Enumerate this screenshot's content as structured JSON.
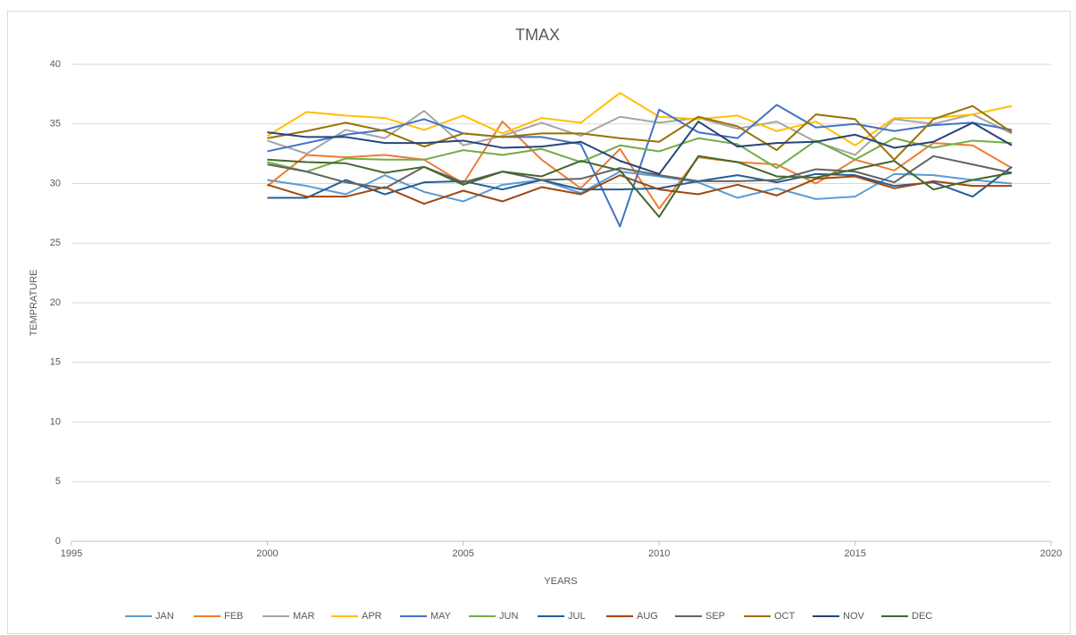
{
  "chart_data": {
    "type": "line",
    "title": "TMAX",
    "xlabel": "YEARS",
    "ylabel": "TEMPRATURE",
    "x": [
      2000,
      2001,
      2002,
      2003,
      2004,
      2005,
      2006,
      2007,
      2008,
      2009,
      2010,
      2011,
      2012,
      2013,
      2014,
      2015,
      2016,
      2017,
      2018,
      2019
    ],
    "xlim": [
      1995,
      2020
    ],
    "xticks": [
      1995,
      2000,
      2005,
      2010,
      2015,
      2020
    ],
    "ylim": [
      0,
      40
    ],
    "yticks": [
      0,
      5,
      10,
      15,
      20,
      25,
      30,
      35,
      40
    ],
    "grid": true,
    "legend": "bottom",
    "series": [
      {
        "name": "JAN",
        "color": "#5b9bd5",
        "values": [
          30.3,
          29.8,
          29.1,
          30.7,
          29.3,
          28.5,
          29.9,
          30.3,
          29.2,
          31.0,
          30.6,
          30.1,
          28.8,
          29.6,
          28.7,
          28.9,
          30.8,
          30.7,
          30.3,
          30.0
        ]
      },
      {
        "name": "FEB",
        "color": "#ed7d31",
        "values": [
          29.8,
          32.4,
          32.2,
          32.4,
          32.0,
          30.0,
          35.2,
          32.0,
          29.6,
          32.9,
          27.9,
          32.2,
          31.8,
          31.6,
          30.0,
          32.0,
          31.1,
          33.4,
          33.2,
          31.3
        ]
      },
      {
        "name": "MAR",
        "color": "#a5a5a5",
        "values": [
          33.6,
          32.5,
          34.5,
          33.8,
          36.1,
          33.2,
          34.0,
          35.1,
          34.0,
          35.6,
          35.1,
          35.5,
          34.6,
          35.2,
          33.5,
          32.4,
          35.4,
          35.0,
          35.8,
          34.2
        ]
      },
      {
        "name": "APR",
        "color": "#ffc000",
        "values": [
          34.0,
          36.0,
          35.7,
          35.5,
          34.5,
          35.7,
          34.2,
          35.5,
          35.1,
          37.6,
          35.6,
          35.4,
          35.7,
          34.4,
          35.2,
          33.2,
          35.5,
          35.5,
          35.8,
          36.5
        ]
      },
      {
        "name": "MAY",
        "color": "#4472c4",
        "values": [
          32.7,
          33.4,
          34.1,
          34.5,
          35.4,
          34.2,
          33.9,
          33.9,
          33.3,
          26.4,
          36.2,
          34.3,
          33.8,
          36.6,
          34.7,
          35.0,
          34.4,
          34.9,
          35.1,
          34.5
        ]
      },
      {
        "name": "JUN",
        "color": "#70ad47",
        "values": [
          31.8,
          31.0,
          32.1,
          32.0,
          32.0,
          32.8,
          32.4,
          32.9,
          31.8,
          33.2,
          32.7,
          33.8,
          33.3,
          31.3,
          33.6,
          32.0,
          33.8,
          33.0,
          33.6,
          33.4
        ]
      },
      {
        "name": "JUL",
        "color": "#255e91",
        "values": [
          28.8,
          28.8,
          30.3,
          29.1,
          30.1,
          30.2,
          29.5,
          30.3,
          29.5,
          29.5,
          29.6,
          30.2,
          30.7,
          30.1,
          30.8,
          30.7,
          29.8,
          30.1,
          28.9,
          31.4
        ]
      },
      {
        "name": "AUG",
        "color": "#9e480e",
        "values": [
          29.9,
          28.9,
          28.9,
          29.7,
          28.3,
          29.4,
          28.5,
          29.7,
          29.1,
          30.7,
          29.5,
          29.1,
          29.9,
          29.0,
          30.4,
          30.6,
          29.6,
          30.2,
          29.8,
          29.8
        ]
      },
      {
        "name": "SEP",
        "color": "#636363",
        "values": [
          31.6,
          31.0,
          30.1,
          29.6,
          31.4,
          30.1,
          31.0,
          30.3,
          30.4,
          31.3,
          30.7,
          30.2,
          30.2,
          30.3,
          31.2,
          31.0,
          30.1,
          32.3,
          31.6,
          30.9
        ]
      },
      {
        "name": "OCT",
        "color": "#997300",
        "values": [
          33.8,
          34.4,
          35.1,
          34.4,
          33.1,
          34.2,
          33.9,
          34.2,
          34.2,
          33.8,
          33.5,
          35.6,
          34.8,
          32.8,
          35.8,
          35.4,
          32.0,
          35.4,
          36.5,
          34.3
        ]
      },
      {
        "name": "NOV",
        "color": "#264478",
        "values": [
          34.3,
          33.9,
          33.9,
          33.4,
          33.4,
          33.6,
          33.0,
          33.1,
          33.5,
          31.9,
          30.8,
          35.2,
          33.1,
          33.4,
          33.5,
          34.1,
          33.0,
          33.5,
          35.1,
          33.2
        ]
      },
      {
        "name": "DEC",
        "color": "#43682b",
        "values": [
          32.0,
          31.8,
          31.7,
          30.9,
          31.4,
          29.9,
          31.0,
          30.6,
          31.9,
          31.1,
          27.2,
          32.3,
          31.8,
          30.6,
          30.5,
          31.2,
          31.9,
          29.5,
          30.3,
          30.9
        ]
      }
    ]
  }
}
